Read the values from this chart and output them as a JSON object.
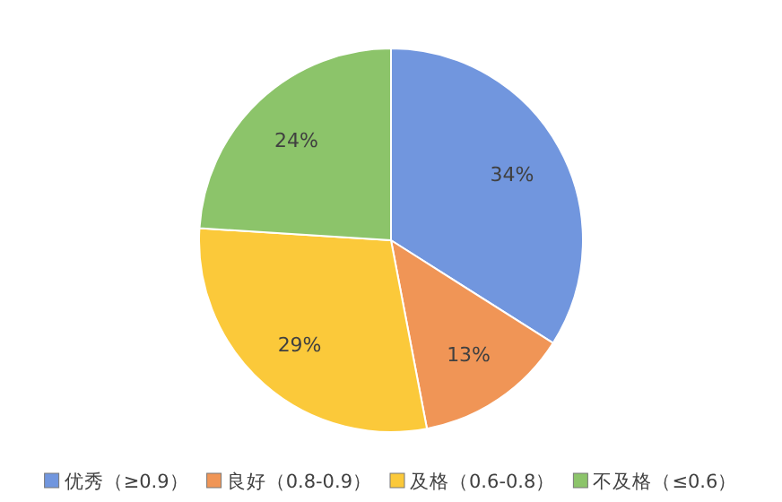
{
  "chart_data": {
    "type": "pie",
    "categories": [
      "优秀（≥0.9）",
      "良好（0.8-0.9）",
      "及格（0.6-0.8）",
      "不及格（≤0.6）"
    ],
    "values": [
      34,
      13,
      29,
      24
    ],
    "value_labels": [
      "34%",
      "13%",
      "29%",
      "24%"
    ],
    "colors": [
      "#7196de",
      "#f09556",
      "#fbc93a",
      "#8cc46a"
    ],
    "legend": "bottom"
  }
}
